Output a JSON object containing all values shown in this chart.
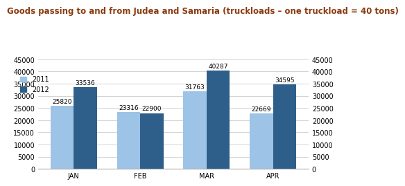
{
  "title": "Goods passing to and from Judea and Samaria (truckloads – one truckload = 40 tons)",
  "categories": [
    "JAN",
    "FEB",
    "MAR",
    "APR"
  ],
  "values_2011": [
    25820,
    23316,
    31763,
    22669
  ],
  "values_2012": [
    33536,
    22900,
    40287,
    34595
  ],
  "color_2011": "#9DC3E6",
  "color_2012": "#2E5F8A",
  "bar_width": 0.35,
  "ylim": [
    0,
    45000
  ],
  "yticks": [
    0,
    5000,
    10000,
    15000,
    20000,
    25000,
    30000,
    35000,
    40000,
    45000
  ],
  "title_color": "#8B3A0F",
  "title_fontsize": 8.5,
  "label_fontsize": 6.5,
  "tick_fontsize": 7,
  "legend_labels": [
    "2011",
    "2012"
  ],
  "background_color": "#FFFFFF",
  "grid_color": "#CCCCCC"
}
